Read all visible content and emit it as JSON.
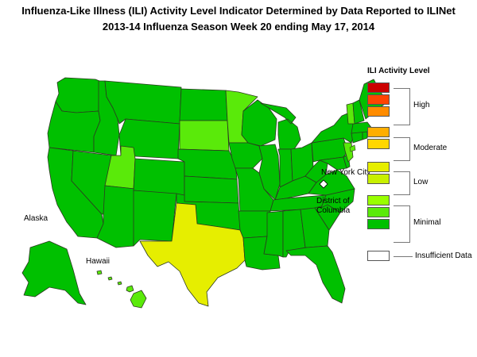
{
  "title": "Influenza-Like Illness (ILI) Activity Level Indicator Determined by Data Reported to ILINet",
  "subtitle": "2013-14  Influenza Season Week  20 ending May 17, 2014",
  "legend": {
    "title": "ILI Activity Level",
    "levels": [
      {
        "level": 10,
        "color": "#cc0000"
      },
      {
        "level": 9,
        "color": "#ff4400"
      },
      {
        "level": 8,
        "color": "#ff8c00"
      },
      {
        "level": 7,
        "color": "#ffae00"
      },
      {
        "level": 6,
        "color": "#ffd700"
      },
      {
        "level": 5,
        "color": "#e6ee00"
      },
      {
        "level": 4,
        "color": "#c8f000"
      },
      {
        "level": 3,
        "color": "#99ff00"
      },
      {
        "level": 2,
        "color": "#5aea0a"
      },
      {
        "level": 1,
        "color": "#00c000"
      },
      {
        "level": 0,
        "color": "#ffffff"
      }
    ],
    "groups": {
      "high": "High",
      "moderate": "Moderate",
      "low": "Low",
      "minimal": "Minimal",
      "insufficient": "Insufficient Data"
    }
  },
  "map_labels": {
    "new_york_city": "New York City",
    "district_of_columbia_line1": "District of",
    "district_of_columbia_line2": "Columbia",
    "alaska": "Alaska",
    "hawaii": "Hawaii"
  },
  "colors": {
    "minimal_dark": "#00c000",
    "minimal_light": "#5aea0a",
    "low": "#e6ee00",
    "border": "#2c3a20"
  },
  "state_levels": {
    "Texas": 5,
    "Utah": 2,
    "South Dakota": 2,
    "Minnesota": 2,
    "Hawaii": 2,
    "Vermont": 2,
    "New Jersey": 2,
    "all_other_states": 1
  }
}
